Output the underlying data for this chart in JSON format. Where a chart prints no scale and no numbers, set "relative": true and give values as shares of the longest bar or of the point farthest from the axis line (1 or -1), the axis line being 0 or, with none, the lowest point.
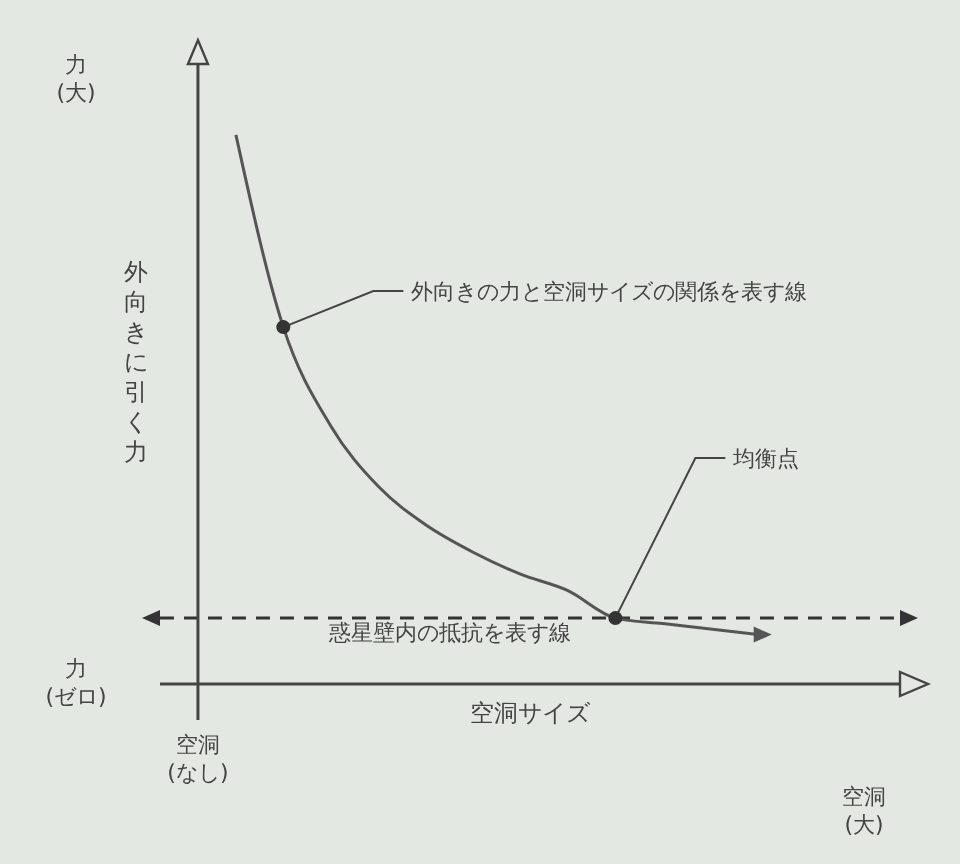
{
  "chart_data": {
    "type": "line",
    "relative": true,
    "xlabel": "空洞サイズ",
    "ylabel": "外向きに引く力",
    "categories": [
      null,
      null,
      null,
      null,
      null,
      null,
      null,
      null,
      null,
      null,
      null,
      null
    ],
    "series": [
      {
        "color": "#555555",
        "values": [
          1.0,
          0.65,
          0.47,
          0.36,
          0.29,
          0.24,
          0.2,
          0.17,
          0.12,
          0.11,
          0.1,
          0.09
        ]
      }
    ],
    "marker": "none",
    "line_style": "solid",
    "grid": false,
    "legend": false,
    "ref_lines": [
      {
        "axis": "y",
        "value": 0.12,
        "label": "惑星壁内の抵抗を表す線",
        "color": "#333333",
        "line_style": "dashed"
      }
    ],
    "annotations": [
      "外向きの力と空洞サイズの関係を表す線",
      "均衡点",
      "力(大)",
      "力(ゼロ)",
      "空洞(なし)",
      "空洞(大)"
    ]
  }
}
